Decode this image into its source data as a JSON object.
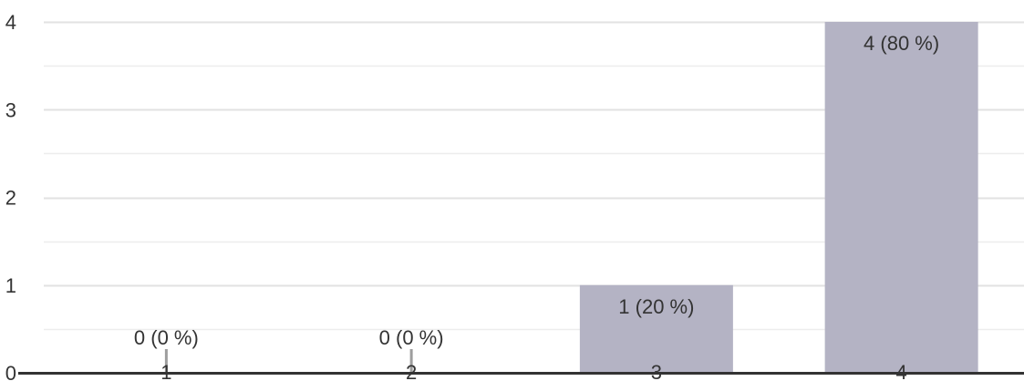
{
  "chart_data": {
    "type": "bar",
    "categories": [
      "1",
      "2",
      "3",
      "4"
    ],
    "values": [
      0,
      0,
      1,
      4
    ],
    "data_labels": [
      "0 (0 %)",
      "0 (0 %)",
      "1 (20 %)",
      "4 (80 %)"
    ],
    "y_ticks": [
      "0",
      "1",
      "2",
      "3",
      "4"
    ],
    "ylim": [
      0,
      4
    ],
    "title": "",
    "xlabel": "",
    "ylabel": "",
    "grid": true,
    "legend": "none",
    "colors": {
      "bar": "#b4b3c4",
      "grid": "#e6e6e6",
      "axis": "#333333",
      "text": "#333333",
      "zero_marker": "#9e9e9e"
    }
  }
}
